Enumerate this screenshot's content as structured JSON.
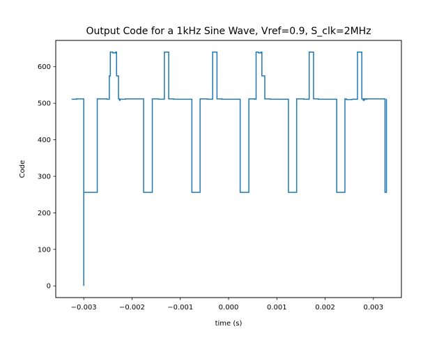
{
  "chart_data": {
    "type": "line",
    "title": "Output Code for a 1kHz Sine Wave, Vref=0.9, S_clk=2MHz",
    "xlabel": "time (s)",
    "ylabel": "Code",
    "xlim": [
      -0.00358,
      0.00358
    ],
    "ylim": [
      -32,
      672
    ],
    "grid": false,
    "x_ticks": [
      -0.003,
      -0.002,
      -0.001,
      0.0,
      0.001,
      0.002,
      0.003
    ],
    "x_tick_labels": [
      "−0.003",
      "−0.002",
      "−0.001",
      "0.000",
      "0.001",
      "0.002",
      "0.003"
    ],
    "y_ticks": [
      0,
      100,
      200,
      300,
      400,
      500,
      600
    ],
    "y_tick_labels": [
      "0",
      "100",
      "200",
      "300",
      "400",
      "500",
      "600"
    ],
    "series": [
      {
        "color": "#1f77b4",
        "x": [
          -0.00325,
          -0.00315,
          -0.00315,
          -0.003,
          -0.003,
          -0.003,
          -0.003,
          -0.00272,
          -0.00272,
          -0.00252,
          -0.00252,
          -0.00247,
          -0.00247,
          -0.00245,
          -0.00245,
          -0.0024,
          -0.0024,
          -0.00234,
          -0.00234,
          -0.00232,
          -0.00232,
          -0.00228,
          -0.00228,
          -0.00226,
          -0.00226,
          -0.00225,
          -0.00225,
          -0.00214,
          -0.00214,
          -0.00176,
          -0.00176,
          -0.00158,
          -0.00158,
          -0.00145,
          -0.00145,
          -0.00133,
          -0.00133,
          -0.00124,
          -0.00124,
          -0.00114,
          -0.00114,
          -0.00076,
          -0.00076,
          -0.00059,
          -0.00059,
          -0.00044,
          -0.00044,
          -0.00033,
          -0.00033,
          -0.00024,
          -0.00024,
          -0.00014,
          -0.00014,
          0.00024,
          0.00024,
          0.00042,
          0.00042,
          0.00054,
          0.00054,
          0.00057,
          0.00057,
          0.00062,
          0.00062,
          0.00067,
          0.00067,
          0.00069,
          0.00069,
          0.00075,
          0.00075,
          0.00086,
          0.00086,
          0.00124,
          0.00124,
          0.00141,
          0.00141,
          0.00156,
          0.00156,
          0.00167,
          0.00167,
          0.00176,
          0.00176,
          0.00186,
          0.00186,
          0.00224,
          0.00224,
          0.00241,
          0.00241,
          0.00244,
          0.00244,
          0.00256,
          0.00256,
          0.00267,
          0.00267,
          0.00276,
          0.00276,
          0.00286,
          0.00286,
          0.00279,
          0.00279,
          0.00281,
          0.00281,
          0.00286,
          0.00286,
          0.00324,
          0.00324,
          0.00327,
          0.00327
        ],
        "y": [
          511,
          511,
          512,
          512,
          0,
          512,
          256,
          256,
          512,
          512,
          511,
          511,
          575,
          575,
          640,
          640,
          638,
          638,
          640,
          640,
          575,
          575,
          512,
          512,
          508,
          508,
          511,
          511,
          512,
          512,
          256,
          256,
          512,
          512,
          511,
          511,
          640,
          640,
          512,
          512,
          511,
          511,
          256,
          256,
          512,
          512,
          511,
          511,
          640,
          640,
          512,
          512,
          511,
          511,
          256,
          256,
          512,
          512,
          511,
          511,
          640,
          640,
          638,
          638,
          640,
          640,
          575,
          575,
          512,
          512,
          511,
          511,
          256,
          256,
          512,
          512,
          511,
          511,
          640,
          640,
          512,
          512,
          511,
          511,
          256,
          256,
          512,
          512,
          510,
          510,
          511,
          511,
          640,
          640,
          512,
          512,
          511,
          511,
          508,
          508,
          511,
          511,
          512,
          512,
          256,
          256,
          512
        ]
      }
    ]
  }
}
